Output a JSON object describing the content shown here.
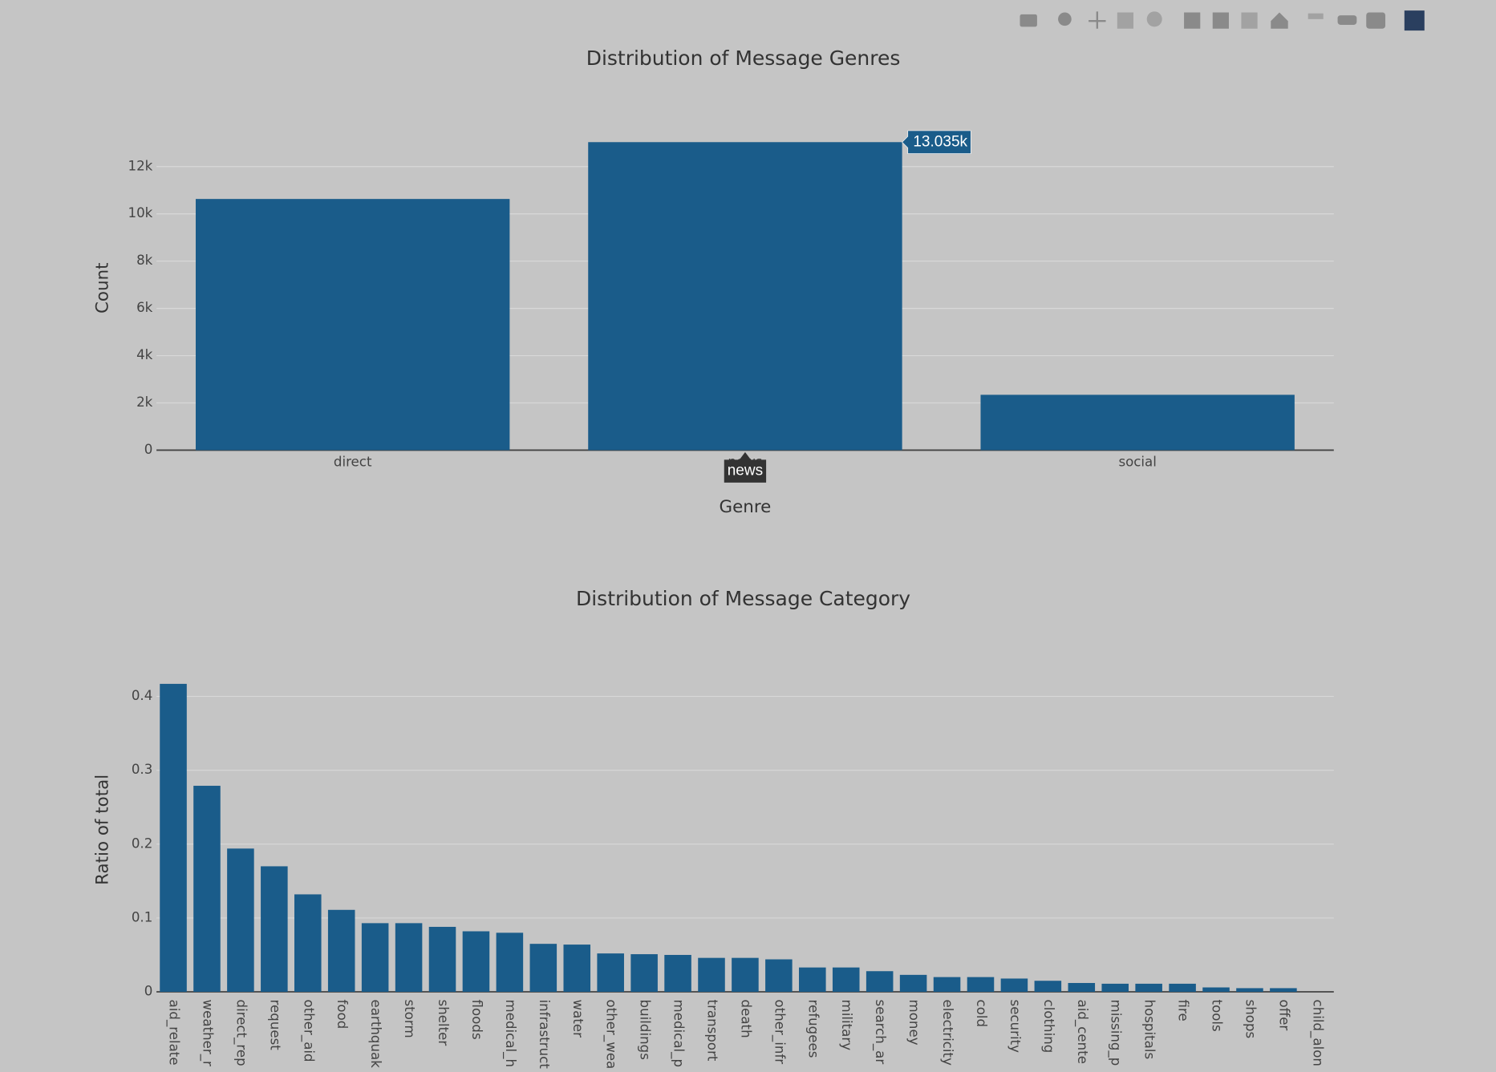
{
  "chart_data": [
    {
      "type": "bar",
      "title": "Distribution of Message Genres",
      "x_label": "Genre",
      "y_label": "Count",
      "categories": [
        "direct",
        "news",
        "social"
      ],
      "values": [
        10630,
        13035,
        2343
      ],
      "value_labels": [
        null,
        "13.035k",
        null
      ],
      "color": "#1a5c8a",
      "ylim": [
        0,
        13721
      ],
      "yticks": [
        0,
        {
          "value": 2000,
          "label": "2k"
        },
        {
          "value": 4000,
          "label": "4k"
        },
        {
          "value": 6000,
          "label": "6k"
        },
        {
          "value": 8000,
          "label": "8k"
        },
        {
          "value": 10000,
          "label": "10k"
        },
        {
          "value": 12000,
          "label": "12k"
        }
      ],
      "grid": true
    },
    {
      "type": "bar",
      "title": "Distribution of Message Category",
      "y_label": "Ratio of total",
      "categories": [
        "aid_relate",
        "weather_r",
        "direct_rep",
        "request",
        "other_aid",
        "food",
        "earthquak",
        "storm",
        "shelter",
        "floods",
        "medical_h",
        "infrastruct",
        "water",
        "other_wea",
        "buildings",
        "medical_p",
        "transport",
        "death",
        "other_infr",
        "refugees",
        "military",
        "search_ar",
        "money",
        "electricity",
        "cold",
        "security",
        "clothing",
        "aid_cente",
        "missing_p",
        "hospitals",
        "fire",
        "tools",
        "shops",
        "offer",
        "child_alon"
      ],
      "values": [
        0.417,
        0.279,
        0.194,
        0.17,
        0.132,
        0.111,
        0.093,
        0.093,
        0.088,
        0.082,
        0.08,
        0.065,
        0.064,
        0.052,
        0.051,
        0.05,
        0.046,
        0.046,
        0.044,
        0.033,
        0.033,
        0.028,
        0.023,
        0.02,
        0.02,
        0.018,
        0.015,
        0.012,
        0.011,
        0.011,
        0.011,
        0.006,
        0.005,
        0.005,
        0
      ],
      "color": "#1a5c8a",
      "ylim": [
        0,
        0.439
      ],
      "yticks": [
        0,
        0.1,
        0.2,
        0.3,
        0.4
      ],
      "grid": true
    }
  ]
}
